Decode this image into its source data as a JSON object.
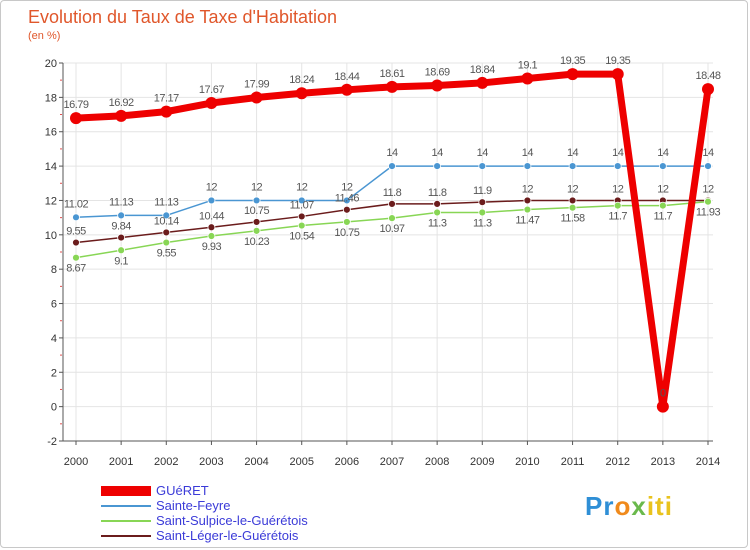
{
  "title": "Evolution du Taux de Taxe d'Habitation",
  "unit_label": "(en %)",
  "logo": {
    "parts": [
      "Pr",
      "o",
      "x",
      "iti"
    ]
  },
  "chart_data": {
    "type": "line",
    "x": [
      "2000",
      "2001",
      "2002",
      "2003",
      "2004",
      "2005",
      "2006",
      "2007",
      "2008",
      "2009",
      "2010",
      "2011",
      "2012",
      "2013",
      "2014"
    ],
    "ylim": [
      -2,
      20
    ],
    "yticks": [
      "-2",
      "0",
      "2",
      "4",
      "6",
      "8",
      "10",
      "12",
      "14",
      "16",
      "18",
      "20"
    ],
    "grid": true,
    "legend_position": "bottom-left",
    "series": [
      {
        "name": "GUéRET",
        "color": "#ee0000",
        "values": [
          16.79,
          16.92,
          17.17,
          17.67,
          17.99,
          18.24,
          18.44,
          18.61,
          18.69,
          18.84,
          19.1,
          19.35,
          19.35,
          0,
          18.48
        ],
        "labels": [
          "16.79",
          "16.92",
          "17.17",
          "17.67",
          "17.99",
          "18.24",
          "18.44",
          "18.61",
          "18.69",
          "18.84",
          "19.1",
          "19.35",
          "19.35",
          "0",
          "18.48"
        ]
      },
      {
        "name": "Sainte-Feyre",
        "color": "#4a96d2",
        "values": [
          11.02,
          11.13,
          11.13,
          12,
          12,
          12,
          12,
          14,
          14,
          14,
          14,
          14,
          14,
          14,
          14
        ],
        "labels": [
          "11.02",
          "11.13",
          "11.13",
          "12",
          "12",
          "12",
          "12",
          "14",
          "14",
          "14",
          "14",
          "14",
          "14",
          "14",
          "14"
        ]
      },
      {
        "name": "Saint-Sulpice-le-Guérétois",
        "color": "#88d655",
        "values": [
          8.67,
          9.1,
          9.55,
          9.93,
          10.23,
          10.54,
          10.75,
          10.97,
          11.3,
          11.3,
          11.47,
          11.58,
          11.7,
          11.7,
          11.93
        ],
        "labels": [
          "8.67",
          "9.1",
          "9.55",
          "9.93",
          "10.23",
          "10.54",
          "10.75",
          "10.97",
          "11.3",
          "11.3",
          "11.47",
          "11.58",
          "11.7",
          "11.7",
          "11.93"
        ]
      },
      {
        "name": "Saint-Léger-le-Guérétois",
        "color": "#6b1c1c",
        "values": [
          9.55,
          9.84,
          10.14,
          10.44,
          10.75,
          11.07,
          11.46,
          11.8,
          11.8,
          11.9,
          12,
          12,
          12,
          12,
          12
        ],
        "labels": [
          "9.55",
          "9.84",
          "10.14",
          "10.44",
          "10.75",
          "11.07",
          "11.46",
          "11.8",
          "11.8",
          "11.9",
          "12",
          "12",
          "12",
          "12",
          "12"
        ]
      }
    ]
  }
}
